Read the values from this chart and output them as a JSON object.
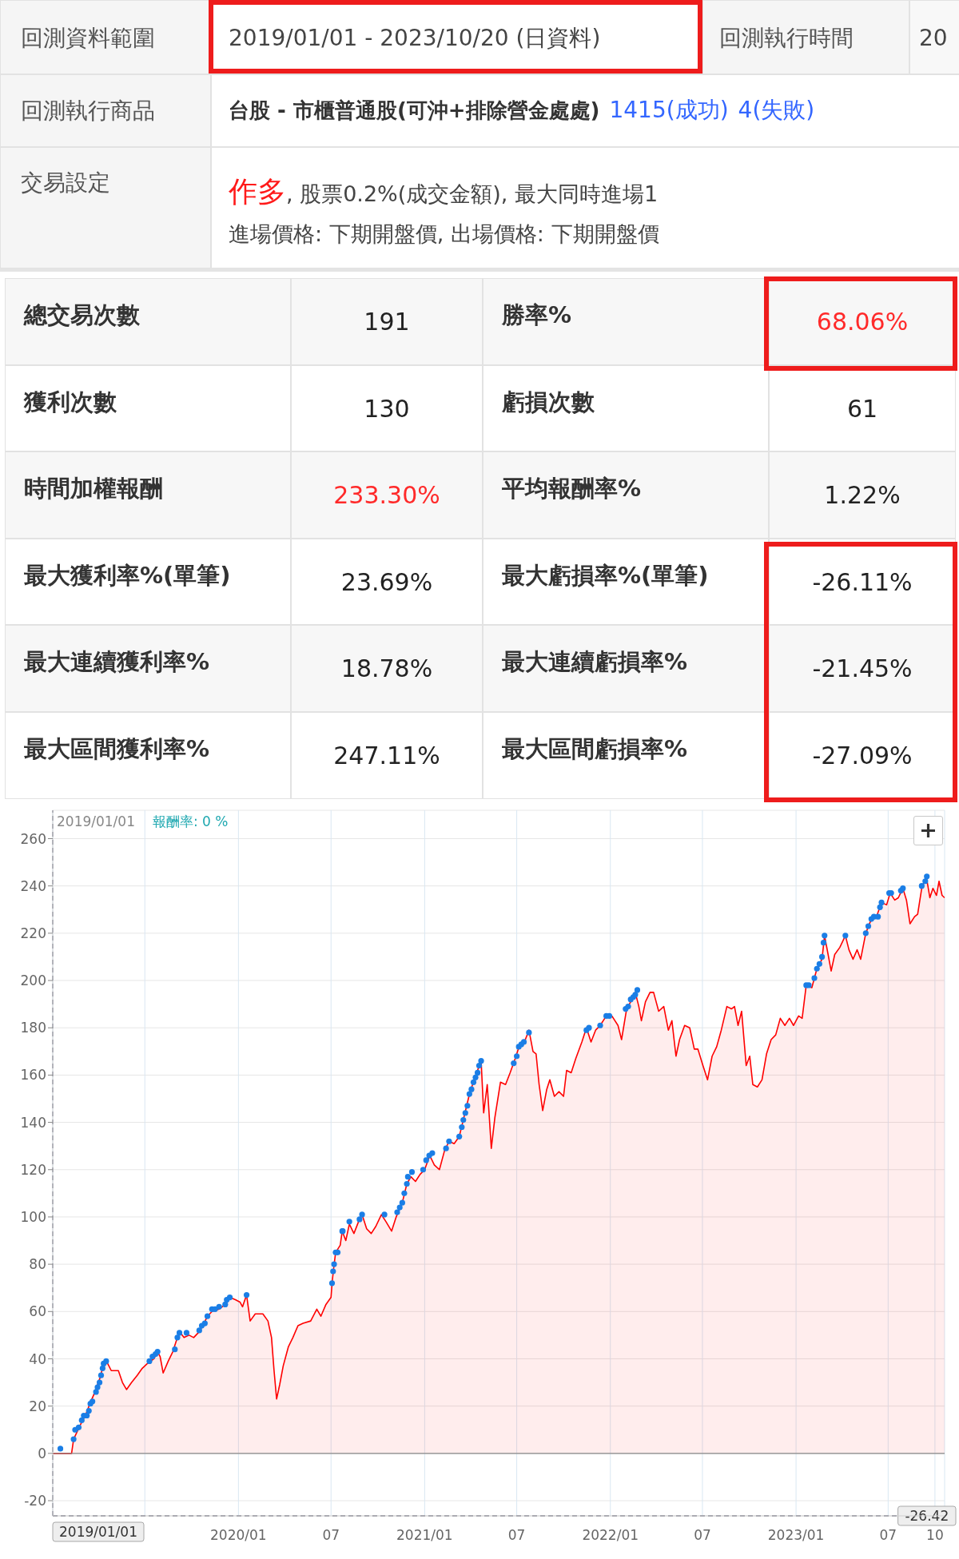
{
  "chart_data": [
    {
      "type": "other",
      "annotations": [
        "回測資料範圍",
        "2019/01/01 - 2023/10/20 (日資料)",
        "回測執行時間",
        "20",
        "回測執行商品",
        "台股 - 市櫃普通股(可沖+排除營金處處)",
        "1415(成功)",
        "4(失敗)",
        "交易設定",
        "作多",
        ", 股票0.2%(成交金額), 最大同時進場1",
        "進場價格: 下期開盤價, 出場價格: 下期開盤價",
        "總交易次數",
        "191",
        "勝率%",
        "68.06%",
        "獲利次數",
        "130",
        "虧損次數",
        "61",
        "時間加權報酬",
        "233.30%",
        "平均報酬率%",
        "1.22%",
        "最大獲利率%(單筆)",
        "23.69%",
        "最大虧損率%(單筆)",
        "-26.11%",
        "最大連續獲利率%",
        "18.78%",
        "最大連續虧損率%",
        "-21.45%",
        "最大區間獲利率%",
        "247.11%",
        "最大區間虧損率%",
        "-27.09%"
      ]
    },
    {
      "type": "area",
      "xlim": [
        "2019-01-01",
        "2023-10-20"
      ],
      "xticks": [
        {
          "value": "2019-01-01",
          "label": null
        },
        {
          "value": "2019-07-01",
          "label": null
        },
        {
          "value": "2020-01-01",
          "label": "2020/01"
        },
        {
          "value": "2020-07-01",
          "label": "07"
        },
        {
          "value": "2021-01-01",
          "label": "2021/01"
        },
        {
          "value": "2021-07-01",
          "label": "07"
        },
        {
          "value": "2022-01-01",
          "label": "2022/01"
        },
        {
          "value": "2022-07-01",
          "label": "07"
        },
        {
          "value": "2023-01-01",
          "label": "2023/01"
        },
        {
          "value": "2023-07-01",
          "label": "07"
        },
        {
          "value": "2023-10-01",
          "label": "10"
        }
      ],
      "ylim": [
        -26.42,
        272
      ],
      "yticks": [
        -20,
        0,
        20,
        40,
        60,
        80,
        100,
        120,
        140,
        160,
        180,
        200,
        220,
        240,
        260
      ],
      "grid": true,
      "annotations": [
        "2019/01/01",
        "報酬率: 0 %"
      ],
      "ref_lines": [
        {
          "axis": "y",
          "value": 0,
          "color": "#888888"
        },
        {
          "axis": "y",
          "value": -26.42,
          "label": "-26.42",
          "line_style": "dashed",
          "color": "#666677"
        },
        {
          "axis": "x",
          "value": "2019-01-01",
          "label": "2019/01/01",
          "line_style": "dashed",
          "color": "#666677"
        }
      ],
      "series": [
        {
          "type": "area",
          "color": "#ff0000",
          "x": [
            "2019-01-01",
            "2019-02-07",
            "2019-02-11",
            "2019-02-24",
            "2019-03-06",
            "2019-03-15",
            "2019-03-25",
            "2019-04-04",
            "2019-04-11",
            "2019-04-19",
            "2019-04-26",
            "2019-05-10",
            "2019-05-18",
            "2019-05-26",
            "2019-06-05",
            "2019-06-16",
            "2019-06-26",
            "2019-07-06",
            "2019-07-19",
            "2019-07-26",
            "2019-07-31",
            "2019-08-06",
            "2019-08-16",
            "2019-08-25",
            "2019-09-03",
            "2019-09-09",
            "2019-09-16",
            "2019-09-26",
            "2019-10-05",
            "2019-10-14",
            "2019-10-23",
            "2019-11-01",
            "2019-11-10",
            "2019-11-24",
            "2019-12-06",
            "2019-12-15",
            "2019-12-26",
            "2020-01-04",
            "2020-01-09",
            "2020-01-17",
            "2020-01-24",
            "2020-02-03",
            "2020-02-18",
            "2020-02-28",
            "2020-03-06",
            "2020-03-11",
            "2020-03-16",
            "2020-03-22",
            "2020-03-29",
            "2020-04-08",
            "2020-04-17",
            "2020-04-27",
            "2020-05-07",
            "2020-05-22",
            "2020-06-03",
            "2020-06-11",
            "2020-06-21",
            "2020-07-01",
            "2020-07-03",
            "2020-07-06",
            "2020-07-10",
            "2020-07-19",
            "2020-07-23",
            "2020-07-30",
            "2020-08-06",
            "2020-08-15",
            "2020-08-24",
            "2020-08-31",
            "2020-09-09",
            "2020-09-18",
            "2020-09-27",
            "2020-10-08",
            "2020-10-17",
            "2020-10-28",
            "2020-11-06",
            "2020-11-18",
            "2020-11-27",
            "2020-12-05",
            "2020-12-14",
            "2020-12-23",
            "2021-01-01",
            "2021-01-11",
            "2021-01-20",
            "2021-01-30",
            "2021-02-09",
            "2021-02-18",
            "2021-02-28",
            "2021-03-10",
            "2021-03-19",
            "2021-03-29",
            "2021-04-08",
            "2021-04-22",
            "2021-04-27",
            "2021-05-04",
            "2021-05-12",
            "2021-05-19",
            "2021-05-30",
            "2021-06-09",
            "2021-06-18",
            "2021-06-28",
            "2021-07-07",
            "2021-07-16",
            "2021-07-25",
            "2021-08-02",
            "2021-08-08",
            "2021-08-14",
            "2021-08-21",
            "2021-08-29",
            "2021-09-04",
            "2021-09-13",
            "2021-09-22",
            "2021-10-01",
            "2021-10-07",
            "2021-10-16",
            "2021-10-25",
            "2021-11-06",
            "2021-11-15",
            "2021-11-24",
            "2021-12-03",
            "2021-12-12",
            "2021-12-24",
            "2022-01-04",
            "2022-01-16",
            "2022-01-23",
            "2022-02-02",
            "2022-02-10",
            "2022-02-19",
            "2022-02-26",
            "2022-03-03",
            "2022-03-11",
            "2022-03-20",
            "2022-03-27",
            "2022-04-06",
            "2022-04-16",
            "2022-04-25",
            "2022-05-02",
            "2022-05-10",
            "2022-05-17",
            "2022-05-27",
            "2022-06-06",
            "2022-06-15",
            "2022-06-22",
            "2022-07-02",
            "2022-07-11",
            "2022-07-20",
            "2022-07-29",
            "2022-08-07",
            "2022-08-18",
            "2022-08-27",
            "2022-09-02",
            "2022-09-09",
            "2022-09-16",
            "2022-09-25",
            "2022-10-02",
            "2022-10-08",
            "2022-10-17",
            "2022-10-26",
            "2022-11-04",
            "2022-11-13",
            "2022-11-22",
            "2022-12-01",
            "2022-12-10",
            "2022-12-19",
            "2022-12-27",
            "2023-01-06",
            "2023-01-13",
            "2023-01-21",
            "2023-02-01",
            "2023-02-11",
            "2023-02-21",
            "2023-02-26",
            "2023-03-05",
            "2023-03-11",
            "2023-03-18",
            "2023-03-28",
            "2023-04-08",
            "2023-04-15",
            "2023-04-23",
            "2023-05-01",
            "2023-05-08",
            "2023-05-18",
            "2023-05-29",
            "2023-06-08",
            "2023-06-18",
            "2023-06-28",
            "2023-07-05",
            "2023-07-14",
            "2023-07-21",
            "2023-07-30",
            "2023-08-06",
            "2023-08-13",
            "2023-08-22",
            "2023-08-28",
            "2023-09-05",
            "2023-09-14",
            "2023-09-21",
            "2023-09-27",
            "2023-10-04",
            "2023-10-09",
            "2023-10-15",
            "2023-10-20"
          ],
          "values": [
            0,
            0,
            6,
            12,
            16,
            21,
            26,
            32,
            38,
            38,
            35,
            35,
            30,
            27,
            30,
            33,
            36,
            38,
            40,
            43,
            41,
            34,
            39,
            43,
            49,
            51,
            49,
            50,
            49,
            51,
            54,
            58,
            60,
            61,
            63,
            66,
            65,
            64,
            62,
            67,
            56,
            59,
            59,
            56,
            49,
            35,
            23,
            29,
            37,
            45,
            49,
            54,
            55,
            56,
            61,
            58,
            63,
            66,
            72,
            78,
            85,
            88,
            94,
            90,
            97,
            93,
            98,
            101,
            95,
            93,
            96,
            101,
            98,
            94,
            100,
            106,
            114,
            117,
            115,
            118,
            120,
            126,
            122,
            120,
            128,
            132,
            131,
            134,
            142,
            151,
            158,
            166,
            144,
            156,
            129,
            142,
            157,
            156,
            161,
            167,
            173,
            174,
            179,
            170,
            169,
            156,
            145,
            154,
            158,
            151,
            153,
            151,
            162,
            161,
            167,
            174,
            180,
            174,
            179,
            181,
            185,
            185,
            181,
            175,
            188,
            191,
            195,
            189,
            183,
            191,
            195,
            195,
            187,
            189,
            179,
            183,
            168,
            175,
            181,
            180,
            171,
            171,
            164,
            158,
            168,
            172,
            179,
            189,
            188,
            189,
            181,
            187,
            164,
            168,
            156,
            155,
            158,
            169,
            175,
            177,
            184,
            181,
            184,
            181,
            185,
            184,
            198,
            197,
            205,
            209,
            219,
            211,
            204,
            211,
            214,
            219,
            213,
            209,
            213,
            209,
            220,
            226,
            227,
            233,
            232,
            237,
            234,
            235,
            239,
            234,
            224,
            227,
            228,
            239,
            244,
            235,
            239,
            236,
            242,
            236,
            235
          ]
        },
        {
          "type": "scatter",
          "color": "#1a7ee6",
          "x": [
            "2019-01-16",
            "2019-02-11",
            "2019-02-14",
            "2019-02-21",
            "2019-02-27",
            "2019-03-03",
            "2019-03-09",
            "2019-03-13",
            "2019-03-16",
            "2019-03-20",
            "2019-03-27",
            "2019-03-30",
            "2019-04-03",
            "2019-04-06",
            "2019-04-09",
            "2019-04-11",
            "2019-04-16",
            "2019-07-10",
            "2019-07-16",
            "2019-07-22",
            "2019-07-26",
            "2019-08-29",
            "2019-09-03",
            "2019-09-07",
            "2019-09-21",
            "2019-10-16",
            "2019-10-21",
            "2019-10-27",
            "2019-11-01",
            "2019-11-10",
            "2019-11-16",
            "2019-11-24",
            "2019-12-06",
            "2019-12-09",
            "2019-12-15",
            "2020-01-17",
            "2020-07-03",
            "2020-07-05",
            "2020-07-07",
            "2020-07-10",
            "2020-07-14",
            "2020-07-23",
            "2020-07-24",
            "2020-08-06",
            "2020-08-26",
            "2020-08-31",
            "2020-10-14",
            "2020-11-08",
            "2020-11-13",
            "2020-11-18",
            "2020-11-22",
            "2020-11-27",
            "2020-11-29",
            "2020-12-07",
            "2020-12-29",
            "2021-01-04",
            "2021-01-10",
            "2021-01-16",
            "2021-02-12",
            "2021-02-18",
            "2021-03-10",
            "2021-03-15",
            "2021-03-18",
            "2021-03-22",
            "2021-03-26",
            "2021-03-30",
            "2021-04-03",
            "2021-04-07",
            "2021-04-11",
            "2021-04-15",
            "2021-04-18",
            "2021-04-22",
            "2021-06-25",
            "2021-07-01",
            "2021-07-05",
            "2021-07-10",
            "2021-07-15",
            "2021-07-25",
            "2021-11-15",
            "2021-11-20",
            "2021-12-12",
            "2021-12-24",
            "2021-12-30",
            "2022-01-31",
            "2022-02-05",
            "2022-02-10",
            "2022-02-15",
            "2022-02-19",
            "2022-02-23",
            "2023-01-21",
            "2023-01-26",
            "2023-02-06",
            "2023-02-11",
            "2023-02-16",
            "2023-02-21",
            "2023-02-24",
            "2023-02-26",
            "2023-04-08",
            "2023-05-18",
            "2023-05-23",
            "2023-05-29",
            "2023-06-03",
            "2023-06-11",
            "2023-06-15",
            "2023-06-18",
            "2023-07-03",
            "2023-07-07",
            "2023-07-26",
            "2023-07-30",
            "2023-09-05",
            "2023-09-12",
            "2023-09-15"
          ],
          "values": [
            2,
            6,
            10,
            11,
            14,
            16,
            16,
            18,
            21,
            22,
            26,
            28,
            30,
            33,
            36,
            38,
            39,
            39,
            41,
            42,
            43,
            44,
            49,
            51,
            51,
            52,
            54,
            55,
            58,
            61,
            61,
            62,
            63,
            65,
            66,
            67,
            72,
            77,
            80,
            85,
            85,
            94,
            94,
            98,
            99,
            101,
            101,
            102,
            104,
            106,
            110,
            114,
            117,
            119,
            120,
            124,
            126,
            127,
            129,
            132,
            134,
            138,
            141,
            144,
            147,
            152,
            154,
            157,
            159,
            161,
            164,
            166,
            165,
            168,
            172,
            173,
            174,
            178,
            179,
            180,
            181,
            185,
            185,
            188,
            189,
            192,
            193,
            194,
            196,
            198,
            198,
            201,
            205,
            207,
            210,
            216,
            219,
            219,
            220,
            223,
            226,
            227,
            227,
            231,
            233,
            237,
            237,
            238,
            239,
            240,
            242,
            244
          ]
        }
      ]
    }
  ]
}
